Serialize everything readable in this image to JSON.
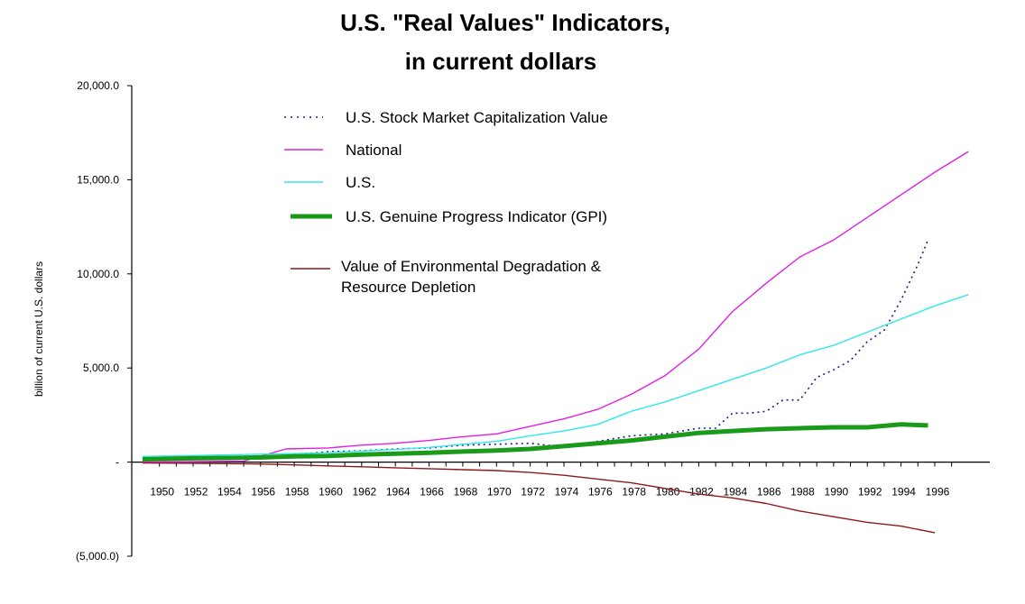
{
  "chart_data": {
    "type": "line",
    "title": "U.S. \"Real Values\" Indicators,",
    "subtitle": "in current dollars",
    "ylabel": "billion of current U.S. dollars",
    "xlabel": "",
    "ylim": [
      -5000,
      20000
    ],
    "xlim": [
      1949,
      1999
    ],
    "y_ticks": [
      20000,
      15000,
      10000,
      5000,
      0,
      -5000
    ],
    "y_tick_labels": [
      "20,000.0",
      "15,000.0",
      "10,000.0",
      "5,000.0",
      "-",
      "(5,000.0)"
    ],
    "x_tick_labels": [
      "1950",
      "1952",
      "1954",
      "1956",
      "1958",
      "1960",
      "1962",
      "1964",
      "1966",
      "1968",
      "1970",
      "1972",
      "1974",
      "1976",
      "1978",
      "1980",
      "1982",
      "1984",
      "1986",
      "1988",
      "1990",
      "1992",
      "1994",
      "1996"
    ],
    "x_tick_values": [
      1950,
      1952,
      1954,
      1956,
      1958,
      1960,
      1962,
      1964,
      1966,
      1968,
      1970,
      1972,
      1974,
      1976,
      1978,
      1980,
      1982,
      1984,
      1986,
      1988,
      1990,
      1992,
      1994,
      1996
    ],
    "grid": false,
    "legend_position": "top-left",
    "series": [
      {
        "name": "U.S. Stock Market Capitalization Value",
        "color": "#1a1a8c",
        "style": "dotted",
        "x": [
          1958,
          1960,
          1962,
          1964,
          1966,
          1968,
          1970,
          1972,
          1974,
          1976,
          1978,
          1980,
          1982,
          1983,
          1984,
          1985,
          1986,
          1987,
          1988,
          1989,
          1990,
          1991,
          1992,
          1993,
          1994,
          1995,
          1995.6
        ],
        "y": [
          400,
          550,
          600,
          700,
          750,
          900,
          950,
          1000,
          800,
          1100,
          1400,
          1500,
          1800,
          1800,
          2600,
          2600,
          2700,
          3300,
          3300,
          4500,
          4900,
          5400,
          6400,
          7000,
          8600,
          10500,
          11800
        ]
      },
      {
        "name": "National",
        "color": "#e020e0",
        "style": "solid",
        "x": [
          1949,
          1955,
          1957.5,
          1960,
          1962,
          1964,
          1966,
          1968,
          1970,
          1972,
          1974,
          1976,
          1978,
          1980,
          1982,
          1984,
          1986,
          1988,
          1990,
          1992,
          1994,
          1996,
          1998
        ],
        "y": [
          0,
          50,
          700,
          750,
          900,
          1000,
          1150,
          1350,
          1500,
          1900,
          2300,
          2800,
          3600,
          4600,
          6000,
          8000,
          9500,
          10900,
          11800,
          13000,
          14200,
          15400,
          16500
        ]
      },
      {
        "name": "U.S.",
        "color": "#30e8e8",
        "style": "solid",
        "x": [
          1949,
          1952,
          1955,
          1958,
          1960,
          1962,
          1964,
          1966,
          1968,
          1970,
          1972,
          1974,
          1976,
          1978,
          1980,
          1982,
          1984,
          1986,
          1988,
          1990,
          1992,
          1994,
          1996,
          1998
        ],
        "y": [
          300,
          350,
          400,
          450,
          500,
          580,
          680,
          780,
          950,
          1100,
          1400,
          1650,
          2000,
          2700,
          3200,
          3800,
          4400,
          5000,
          5700,
          6200,
          6900,
          7600,
          8300,
          8900
        ]
      },
      {
        "name": "U.S. Genuine Progress Indicator (GPI)",
        "color": "#1a9a1a",
        "style": "thick",
        "x": [
          1949,
          1952,
          1954,
          1956,
          1958,
          1960,
          1962,
          1964,
          1966,
          1968,
          1970,
          1972,
          1974,
          1976,
          1978,
          1980,
          1982,
          1984,
          1986,
          1988,
          1990,
          1992,
          1994,
          1995.6
        ],
        "y": [
          150,
          200,
          220,
          250,
          300,
          330,
          400,
          450,
          500,
          560,
          620,
          700,
          850,
          1000,
          1150,
          1350,
          1550,
          1650,
          1750,
          1800,
          1850,
          1850,
          2000,
          1950
        ]
      },
      {
        "name": "Value of Environmental Degradation & Resource Depletion",
        "label_lines": [
          "Value of Environmental Degradation &",
          "Resource Depletion"
        ],
        "color": "#8b1a1a",
        "style": "solid",
        "x": [
          1949,
          1952,
          1954,
          1956,
          1958,
          1960,
          1962,
          1964,
          1966,
          1968,
          1970,
          1972,
          1974,
          1976,
          1978,
          1980,
          1982,
          1984,
          1986,
          1988,
          1990,
          1992,
          1994,
          1996
        ],
        "y": [
          -50,
          -60,
          -80,
          -100,
          -150,
          -200,
          -250,
          -300,
          -350,
          -400,
          -450,
          -550,
          -700,
          -900,
          -1100,
          -1400,
          -1700,
          -1900,
          -2200,
          -2600,
          -2900,
          -3200,
          -3400,
          -3750
        ]
      }
    ]
  }
}
